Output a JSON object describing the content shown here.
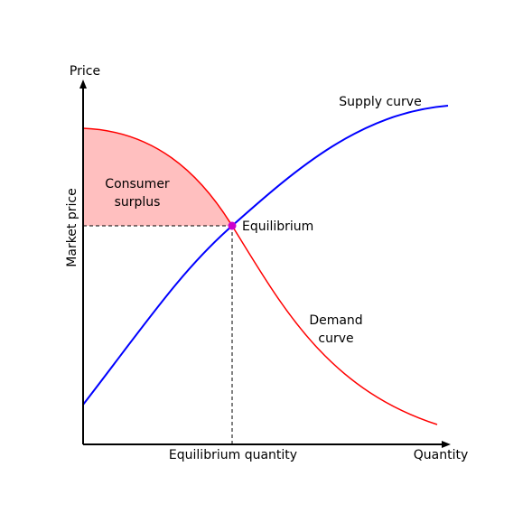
{
  "axes": {
    "y_label": "Price",
    "x_label": "Quantity",
    "y_marker_label": "Market price",
    "x_marker_label": "Equilibrium quantity"
  },
  "curves": {
    "supply_label": "Supply curve",
    "demand_label": [
      "Demand",
      "curve"
    ]
  },
  "regions": {
    "consumer_surplus_label": [
      "Consumer",
      "surplus"
    ]
  },
  "points": {
    "equilibrium_label": "Equilibrium"
  }
}
